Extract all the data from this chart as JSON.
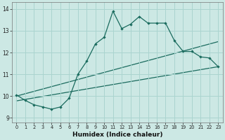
{
  "xlabel": "Humidex (Indice chaleur)",
  "bg_color": "#cce8e4",
  "grid_color": "#aad4cf",
  "line_color": "#1a6b5e",
  "xlim": [
    -0.5,
    23.5
  ],
  "ylim": [
    8.8,
    14.3
  ],
  "xticks": [
    0,
    1,
    2,
    3,
    4,
    5,
    6,
    7,
    8,
    9,
    10,
    11,
    12,
    13,
    14,
    15,
    16,
    17,
    18,
    19,
    20,
    21,
    22,
    23
  ],
  "yticks": [
    9,
    10,
    11,
    12,
    13,
    14
  ],
  "line1_x": [
    0,
    1,
    2,
    3,
    4,
    5,
    6,
    7,
    8,
    9,
    10,
    11,
    12,
    13,
    14,
    15,
    16,
    17,
    18,
    19,
    20,
    21,
    22,
    23
  ],
  "line1_y": [
    10.05,
    9.8,
    9.6,
    9.5,
    9.4,
    9.5,
    9.9,
    11.0,
    11.6,
    12.4,
    12.7,
    13.9,
    13.1,
    13.3,
    13.65,
    13.35,
    13.35,
    13.35,
    12.55,
    12.05,
    12.05,
    11.8,
    11.75,
    11.35
  ],
  "line2_x": [
    0,
    23
  ],
  "line2_y": [
    10.0,
    12.5
  ],
  "line3_x": [
    0,
    23
  ],
  "line3_y": [
    9.78,
    11.35
  ]
}
